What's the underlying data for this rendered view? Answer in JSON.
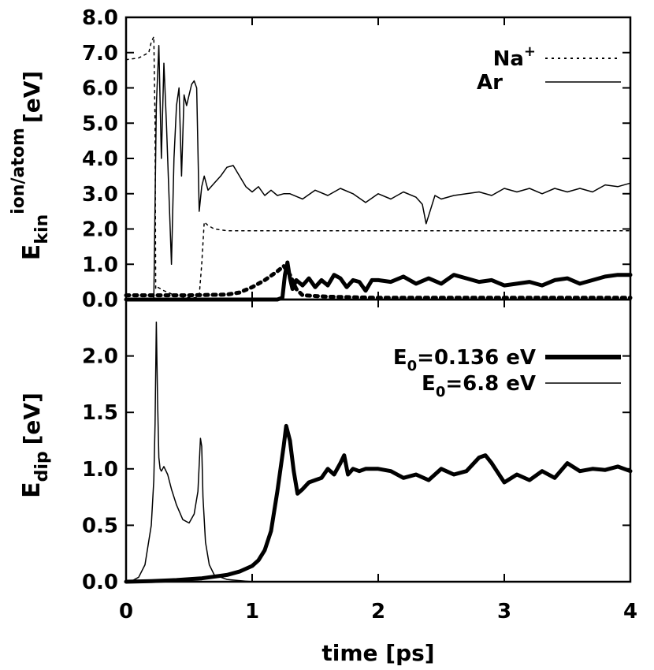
{
  "chart_data": [
    {
      "panel": "top",
      "type": "line",
      "xlabel": "time [ps]",
      "ylabel_main": "E",
      "ylabel_sub": "kin",
      "ylabel_sup": "ion/atom",
      "ylabel_unit": "[eV]",
      "xlim": [
        0,
        4
      ],
      "ylim": [
        0,
        8
      ],
      "yticks": [
        "0.0",
        "1.0",
        "2.0",
        "3.0",
        "4.0",
        "5.0",
        "6.0",
        "7.0",
        "8.0"
      ],
      "ytick_values": [
        0,
        1,
        2,
        3,
        4,
        5,
        6,
        7,
        8
      ],
      "legend": [
        {
          "label_main": "Na",
          "label_sup": "+",
          "style": "dotted"
        },
        {
          "label_main": "Ar",
          "label_sup": "",
          "style": "thin"
        }
      ],
      "series": [
        {
          "name": "Na+ (E0=6.8 eV)",
          "style": "dotted",
          "width": "thin",
          "x": [
            0.0,
            0.1,
            0.18,
            0.2,
            0.22,
            0.23,
            0.235,
            0.25,
            0.3,
            0.4,
            0.5,
            0.55,
            0.58,
            0.6,
            0.62,
            0.65,
            0.7,
            0.8,
            1.0,
            1.5,
            2.0,
            3.0,
            4.0
          ],
          "y": [
            6.8,
            6.85,
            7.0,
            7.3,
            7.45,
            5.0,
            0.3,
            0.35,
            0.25,
            0.1,
            0.05,
            0.05,
            0.1,
            1.0,
            2.2,
            2.1,
            2.0,
            1.95,
            1.95,
            1.95,
            1.95,
            1.95,
            1.95
          ]
        },
        {
          "name": "Ar (E0=6.8 eV)",
          "style": "solid",
          "width": "thin",
          "x": [
            0.0,
            0.22,
            0.24,
            0.26,
            0.28,
            0.3,
            0.32,
            0.34,
            0.36,
            0.38,
            0.4,
            0.42,
            0.44,
            0.46,
            0.48,
            0.5,
            0.52,
            0.54,
            0.56,
            0.58,
            0.6,
            0.62,
            0.65,
            0.7,
            0.75,
            0.8,
            0.85,
            0.9,
            0.95,
            1.0,
            1.05,
            1.1,
            1.15,
            1.2,
            1.25,
            1.3,
            1.4,
            1.5,
            1.6,
            1.7,
            1.8,
            1.9,
            2.0,
            2.1,
            2.2,
            2.3,
            2.35,
            2.38,
            2.45,
            2.5,
            2.6,
            2.7,
            2.8,
            2.9,
            3.0,
            3.1,
            3.2,
            3.3,
            3.4,
            3.5,
            3.6,
            3.7,
            3.8,
            3.9,
            4.0
          ],
          "y": [
            0.0,
            0.0,
            5.5,
            7.2,
            4.0,
            6.7,
            5.0,
            3.0,
            1.0,
            4.0,
            5.5,
            6.0,
            3.5,
            5.8,
            5.5,
            5.8,
            6.1,
            6.2,
            6.0,
            2.5,
            3.2,
            3.5,
            3.1,
            3.3,
            3.5,
            3.75,
            3.8,
            3.5,
            3.2,
            3.05,
            3.2,
            2.95,
            3.1,
            2.95,
            3.0,
            3.0,
            2.85,
            3.1,
            2.95,
            3.15,
            3.0,
            2.75,
            3.0,
            2.85,
            3.05,
            2.9,
            2.7,
            2.15,
            2.95,
            2.85,
            2.95,
            3.0,
            3.05,
            2.95,
            3.15,
            3.05,
            3.15,
            3.0,
            3.15,
            3.05,
            3.15,
            3.05,
            3.25,
            3.2,
            3.3
          ]
        },
        {
          "name": "Na+ (E0=0.136 eV)",
          "style": "dotted",
          "width": "thick",
          "x": [
            0.0,
            0.5,
            0.8,
            0.9,
            1.0,
            1.1,
            1.2,
            1.25,
            1.3,
            1.35,
            1.4,
            1.6,
            2.0,
            3.0,
            4.0
          ],
          "y": [
            0.12,
            0.12,
            0.14,
            0.2,
            0.35,
            0.55,
            0.8,
            0.95,
            0.7,
            0.3,
            0.12,
            0.08,
            0.05,
            0.05,
            0.05
          ]
        },
        {
          "name": "Ar (E0=0.136 eV)",
          "style": "solid",
          "width": "thick",
          "x": [
            0.0,
            1.2,
            1.24,
            1.26,
            1.28,
            1.3,
            1.32,
            1.35,
            1.4,
            1.45,
            1.5,
            1.55,
            1.6,
            1.65,
            1.7,
            1.75,
            1.8,
            1.85,
            1.9,
            1.95,
            2.0,
            2.1,
            2.2,
            2.3,
            2.4,
            2.5,
            2.6,
            2.7,
            2.8,
            2.9,
            3.0,
            3.1,
            3.2,
            3.3,
            3.4,
            3.5,
            3.6,
            3.7,
            3.8,
            3.9,
            4.0
          ],
          "y": [
            0.0,
            0.0,
            0.05,
            0.7,
            1.05,
            0.6,
            0.3,
            0.55,
            0.4,
            0.6,
            0.35,
            0.55,
            0.4,
            0.7,
            0.6,
            0.35,
            0.55,
            0.5,
            0.25,
            0.55,
            0.55,
            0.5,
            0.65,
            0.45,
            0.6,
            0.45,
            0.7,
            0.6,
            0.5,
            0.55,
            0.4,
            0.45,
            0.5,
            0.4,
            0.55,
            0.6,
            0.45,
            0.55,
            0.65,
            0.7,
            0.7
          ]
        }
      ]
    },
    {
      "panel": "bottom",
      "type": "line",
      "xlabel": "time [ps]",
      "ylabel_main": "E",
      "ylabel_sub": "dip",
      "ylabel_unit": "[eV]",
      "xlim": [
        0,
        4
      ],
      "ylim": [
        0,
        2.5
      ],
      "yticks": [
        "0.0",
        "0.5",
        "1.0",
        "1.5",
        "2.0"
      ],
      "ytick_values": [
        0,
        0.5,
        1.0,
        1.5,
        2.0
      ],
      "xticks": [
        "0",
        "1",
        "2",
        "3",
        "4"
      ],
      "xtick_values": [
        0,
        1,
        2,
        3,
        4
      ],
      "legend": [
        {
          "label_main": "E",
          "label_sub": "0",
          "label_rest": "=0.136 eV",
          "style": "thick"
        },
        {
          "label_main": "E",
          "label_sub": "0",
          "label_rest": "=6.8 eV",
          "style": "thin"
        }
      ],
      "series": [
        {
          "name": "E0=0.136 eV",
          "style": "solid",
          "width": "thick",
          "x": [
            0.0,
            0.2,
            0.4,
            0.6,
            0.8,
            0.9,
            1.0,
            1.05,
            1.1,
            1.15,
            1.2,
            1.25,
            1.27,
            1.3,
            1.33,
            1.36,
            1.4,
            1.45,
            1.5,
            1.55,
            1.6,
            1.65,
            1.7,
            1.73,
            1.76,
            1.8,
            1.85,
            1.9,
            2.0,
            2.1,
            2.2,
            2.3,
            2.4,
            2.5,
            2.6,
            2.7,
            2.8,
            2.85,
            2.9,
            3.0,
            3.1,
            3.2,
            3.3,
            3.4,
            3.5,
            3.6,
            3.7,
            3.8,
            3.9,
            4.0
          ],
          "y": [
            0.0,
            0.005,
            0.015,
            0.03,
            0.06,
            0.09,
            0.14,
            0.19,
            0.28,
            0.45,
            0.8,
            1.2,
            1.38,
            1.25,
            0.98,
            0.78,
            0.82,
            0.88,
            0.9,
            0.92,
            1.0,
            0.95,
            1.05,
            1.12,
            0.95,
            1.0,
            0.98,
            1.0,
            1.0,
            0.98,
            0.92,
            0.95,
            0.9,
            1.0,
            0.95,
            0.98,
            1.1,
            1.12,
            1.05,
            0.88,
            0.95,
            0.9,
            0.98,
            0.92,
            1.05,
            0.98,
            1.0,
            0.99,
            1.02,
            0.98
          ]
        },
        {
          "name": "E0=6.8 eV",
          "style": "solid",
          "width": "thin",
          "x": [
            0.0,
            0.05,
            0.1,
            0.15,
            0.2,
            0.22,
            0.23,
            0.24,
            0.25,
            0.26,
            0.27,
            0.28,
            0.3,
            0.33,
            0.36,
            0.4,
            0.45,
            0.5,
            0.54,
            0.57,
            0.59,
            0.6,
            0.61,
            0.63,
            0.66,
            0.7,
            0.8,
            0.9,
            1.0,
            1.5,
            2.0,
            4.0
          ],
          "y": [
            0.0,
            0.01,
            0.04,
            0.15,
            0.5,
            0.9,
            1.4,
            2.3,
            1.6,
            1.1,
            1.0,
            0.98,
            1.02,
            0.95,
            0.82,
            0.68,
            0.55,
            0.52,
            0.6,
            0.8,
            1.27,
            1.2,
            0.75,
            0.35,
            0.15,
            0.06,
            0.02,
            0.01,
            0.0,
            0.0,
            0.0,
            0.0
          ]
        }
      ]
    }
  ]
}
